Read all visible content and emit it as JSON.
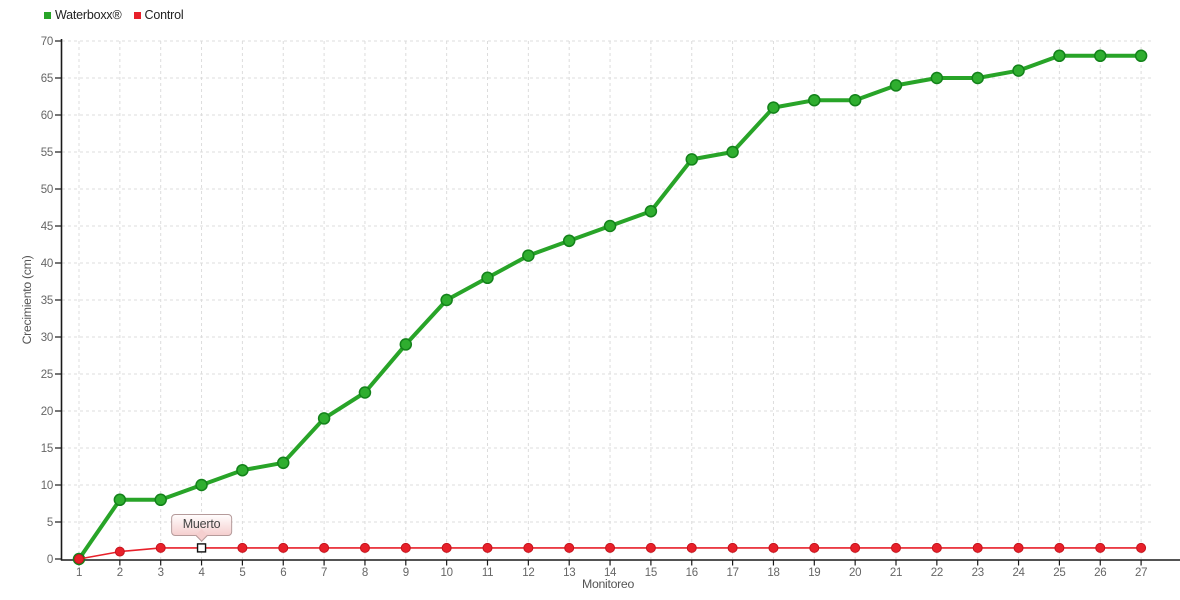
{
  "chart_data": {
    "type": "line",
    "x": [
      1,
      2,
      3,
      4,
      5,
      6,
      7,
      8,
      9,
      10,
      11,
      12,
      13,
      14,
      15,
      16,
      17,
      18,
      19,
      20,
      21,
      22,
      23,
      24,
      25,
      26,
      27
    ],
    "series": [
      {
        "name": "Waterboxx®",
        "color": "#28a428",
        "marker_fill": "#2fae2f",
        "marker_stroke": "#13821a",
        "values": [
          0,
          8,
          8,
          10,
          12,
          13,
          19,
          22.5,
          29,
          35,
          38,
          41,
          43,
          45,
          47,
          54,
          55,
          61,
          62,
          62,
          64,
          65,
          65,
          66,
          68,
          68,
          68
        ]
      },
      {
        "name": "Control",
        "color": "#e8202a",
        "marker_fill": "#e8202a",
        "marker_stroke": "#c4141d",
        "values": [
          0,
          1,
          1.5,
          1.5,
          1.5,
          1.5,
          1.5,
          1.5,
          1.5,
          1.5,
          1.5,
          1.5,
          1.5,
          1.5,
          1.5,
          1.5,
          1.5,
          1.5,
          1.5,
          1.5,
          1.5,
          1.5,
          1.5,
          1.5,
          1.5,
          1.5,
          1.5
        ]
      }
    ],
    "xlabel": "Monitoreo",
    "ylabel": "Crecimiento (cm)",
    "ylim": [
      0,
      70
    ],
    "ytick_step": 5,
    "grid": true,
    "legend_position": "top-left",
    "annotations": [
      {
        "series": "Control",
        "x": 4,
        "y": 1.5,
        "label": "Muerto",
        "marker": "white-square"
      }
    ]
  },
  "colors": {
    "background": "#ffffff",
    "grid": "#dcdcdc",
    "axis": "#1a1a1a",
    "tick_text": "#666666",
    "axis_title_text": "#555555",
    "legend_text": "#222222",
    "tooltip_border": "#b59a9a",
    "tooltip_bg_top": "#fffcfc",
    "tooltip_bg_bottom": "#f5cfcf",
    "tooltip_text": "#444444",
    "annotation_marker_fill": "#ffffff",
    "annotation_marker_stroke": "#111111"
  }
}
